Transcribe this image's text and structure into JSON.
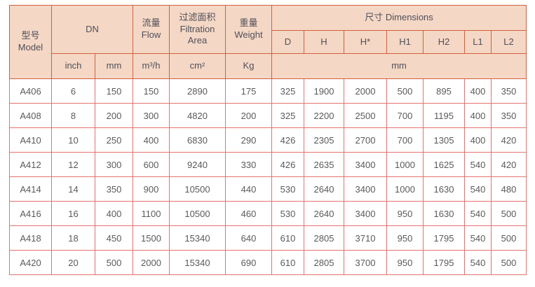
{
  "table": {
    "header": {
      "model": "型号\nModel",
      "dn": "DN",
      "flow": "流量\nFlow",
      "filtration_area": "过滤面积\nFiltration Area",
      "weight": "重量\nWeight",
      "dimensions": "尺寸 Dimensions",
      "dim_cols": [
        "D",
        "H",
        "H*",
        "H1",
        "H2",
        "L1",
        "L2"
      ],
      "units": {
        "inch": "inch",
        "mm": "mm",
        "flow": "m³/h",
        "area": "cm²",
        "weight": "Kg",
        "dims": "mm"
      }
    },
    "rows": [
      [
        "A406",
        "6",
        "150",
        "150",
        "2890",
        "175",
        "325",
        "1900",
        "2000",
        "500",
        "895",
        "400",
        "350"
      ],
      [
        "A408",
        "8",
        "200",
        "300",
        "4820",
        "200",
        "325",
        "2200",
        "2500",
        "700",
        "1195",
        "400",
        "350"
      ],
      [
        "A410",
        "10",
        "250",
        "400",
        "6830",
        "290",
        "426",
        "2305",
        "2700",
        "700",
        "1305",
        "400",
        "420"
      ],
      [
        "A412",
        "12",
        "300",
        "600",
        "9240",
        "330",
        "426",
        "2635",
        "3400",
        "1000",
        "1625",
        "540",
        "420"
      ],
      [
        "A414",
        "14",
        "350",
        "900",
        "10500",
        "440",
        "530",
        "2640",
        "3400",
        "1000",
        "1630",
        "540",
        "480"
      ],
      [
        "A416",
        "16",
        "400",
        "1100",
        "10500",
        "460",
        "530",
        "2640",
        "3400",
        "950",
        "1630",
        "540",
        "500"
      ],
      [
        "A418",
        "18",
        "450",
        "1500",
        "15340",
        "640",
        "610",
        "2805",
        "3710",
        "950",
        "1795",
        "540",
        "500"
      ],
      [
        "A420",
        "20",
        "500",
        "2000",
        "15340",
        "690",
        "610",
        "2805",
        "3700",
        "950",
        "1795",
        "540",
        "500"
      ]
    ]
  },
  "colors": {
    "header_bg": "#f4d7c5",
    "header_border": "#d2603e",
    "body_border": "#e57170",
    "header_text": "#50505a",
    "body_text": "#5a5a5c"
  },
  "chart_data": {
    "type": "table",
    "title": "尺寸 Dimensions specification table",
    "columns": [
      "型号 Model",
      "DN inch",
      "DN mm",
      "流量 Flow m³/h",
      "过滤面积 Filtration Area cm²",
      "重量 Weight Kg",
      "D mm",
      "H mm",
      "H* mm",
      "H1 mm",
      "H2 mm",
      "L1 mm",
      "L2 mm"
    ],
    "rows": [
      [
        "A406",
        6,
        150,
        150,
        2890,
        175,
        325,
        1900,
        2000,
        500,
        895,
        400,
        350
      ],
      [
        "A408",
        8,
        200,
        300,
        4820,
        200,
        325,
        2200,
        2500,
        700,
        1195,
        400,
        350
      ],
      [
        "A410",
        10,
        250,
        400,
        6830,
        290,
        426,
        2305,
        2700,
        700,
        1305,
        400,
        420
      ],
      [
        "A412",
        12,
        300,
        600,
        9240,
        330,
        426,
        2635,
        3400,
        1000,
        1625,
        540,
        420
      ],
      [
        "A414",
        14,
        350,
        900,
        10500,
        440,
        530,
        2640,
        3400,
        1000,
        1630,
        540,
        480
      ],
      [
        "A416",
        16,
        400,
        1100,
        10500,
        460,
        530,
        2640,
        3400,
        950,
        1630,
        540,
        500
      ],
      [
        "A418",
        18,
        450,
        1500,
        15340,
        640,
        610,
        2805,
        3710,
        950,
        1795,
        540,
        500
      ],
      [
        "A420",
        20,
        500,
        2000,
        15340,
        690,
        610,
        2805,
        3700,
        950,
        1795,
        540,
        500
      ]
    ]
  }
}
